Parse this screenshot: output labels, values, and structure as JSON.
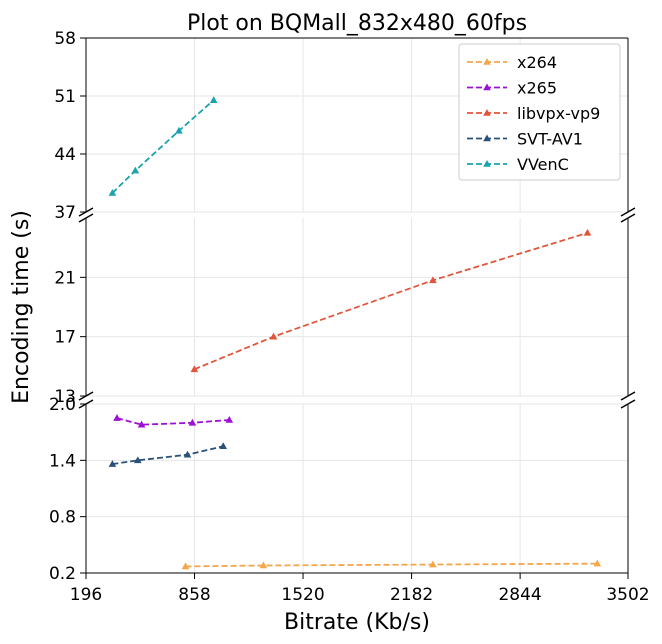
{
  "chart_data": {
    "type": "line",
    "title": "Plot on BQMall_832x480_60fps",
    "xlabel": "Bitrate (Kb/s)",
    "ylabel": "Encoding time (s)",
    "xlim": [
      196,
      3502
    ],
    "x_ticks": [
      "196",
      "858",
      "1520",
      "2182",
      "2844",
      "3502"
    ],
    "broken_y_axis": true,
    "y_segments": [
      {
        "name": "top",
        "ylim": [
          37,
          58
        ],
        "ticks": [
          "37",
          "44",
          "51",
          "58"
        ]
      },
      {
        "name": "middle",
        "ylim": [
          13,
          25
        ],
        "ticks": [
          "13",
          "17",
          "21"
        ]
      },
      {
        "name": "bottom",
        "ylim": [
          0.2,
          2.0
        ],
        "ticks": [
          "0.2",
          "0.8",
          "1.4",
          "2.0"
        ]
      }
    ],
    "grid": true,
    "legend_position": "top-right",
    "series": [
      {
        "name": "x264",
        "color": "#f4a64b",
        "segment": "bottom",
        "points": [
          [
            803,
            0.27
          ],
          [
            1278,
            0.28
          ],
          [
            2312,
            0.29
          ],
          [
            3315,
            0.3
          ]
        ]
      },
      {
        "name": "x265",
        "color": "#9b11d4",
        "segment": "bottom",
        "points": [
          [
            385,
            1.85
          ],
          [
            535,
            1.78
          ],
          [
            845,
            1.8
          ],
          [
            1070,
            1.83
          ]
        ]
      },
      {
        "name": "libvpx-vp9",
        "color": "#e0553b",
        "segment": "middle",
        "points": [
          [
            857,
            14.8
          ],
          [
            1340,
            17.0
          ],
          [
            2312,
            20.8
          ],
          [
            3255,
            24.0
          ]
        ]
      },
      {
        "name": "SVT-AV1",
        "color": "#2a5179",
        "segment": "bottom",
        "points": [
          [
            357,
            1.36
          ],
          [
            512,
            1.4
          ],
          [
            815,
            1.46
          ],
          [
            1033,
            1.55
          ]
        ]
      },
      {
        "name": "VVenC",
        "color": "#1aa3ad",
        "segment": "top",
        "points": [
          [
            357,
            39.3
          ],
          [
            497,
            42.0
          ],
          [
            763,
            46.8
          ],
          [
            975,
            50.5
          ]
        ]
      }
    ]
  }
}
